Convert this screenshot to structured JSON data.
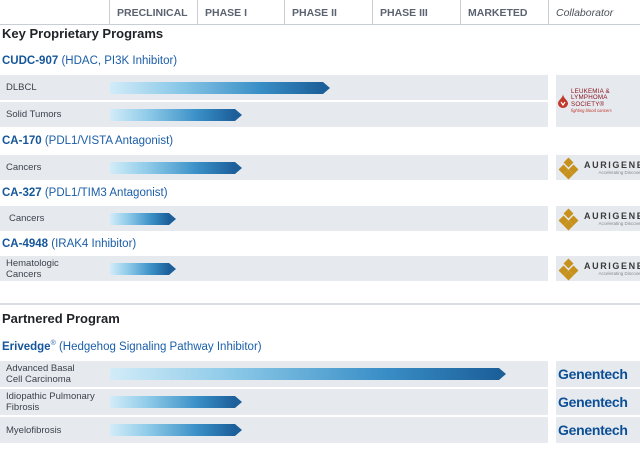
{
  "chart_data": {
    "type": "pipeline",
    "phases": [
      "PRECLINICAL",
      "PHASE I",
      "PHASE II",
      "PHASE III",
      "MARKETED"
    ],
    "collaborator_header": "Collaborator",
    "sections": [
      {
        "title": "Key Proprietary Programs",
        "programs": [
          {
            "code": "CUDC-907",
            "desc": "(HDAC, PI3K Inhibitor)",
            "sup": "",
            "rows": [
              {
                "label": [
                  "DLBCL"
                ],
                "progress": 2.5
              },
              {
                "label": [
                  "Solid Tumors"
                ],
                "progress": 1.5
              }
            ],
            "collaborator": {
              "kind": "lls",
              "name_lines": [
                "LEUKEMIA &",
                "LYMPHOMA SOCIETY"
              ],
              "trademark": "®",
              "tagline": "fighting blood cancers"
            }
          },
          {
            "code": "CA-170",
            "desc": "(PDL1/VISTA Antagonist)",
            "sup": "",
            "rows": [
              {
                "label": [
                  "Cancers"
                ],
                "progress": 1.5
              }
            ],
            "collaborator": {
              "kind": "aurigene",
              "name": "AURIGENE",
              "tagline": "Accelerating Discovery"
            }
          },
          {
            "code": "CA-327",
            "desc": "(PDL1/TIM3 Antagonist)",
            "sup": "",
            "rows": [
              {
                "label": [
                  "Cancers"
                ],
                "progress": 0.75
              }
            ],
            "collaborator": {
              "kind": "aurigene",
              "name": "AURIGENE",
              "tagline": "Accelerating Discovery"
            }
          },
          {
            "code": "CA-4948",
            "desc": "(IRAK4 Inhibitor)",
            "sup": "",
            "rows": [
              {
                "label": [
                  "Hematologic",
                  "Cancers"
                ],
                "progress": 0.75
              }
            ],
            "collaborator": {
              "kind": "aurigene",
              "name": "AURIGENE",
              "tagline": "Accelerating Discovery"
            }
          }
        ]
      },
      {
        "title": "Partnered Program",
        "programs": [
          {
            "code": "Erivedge",
            "sup": "®",
            "desc": "(Hedgehog Signaling Pathway Inhibitor)",
            "rows": [
              {
                "label": [
                  "Advanced Basal",
                  "Cell Carcinoma"
                ],
                "progress": 4.5,
                "collaborator": {
                  "kind": "genentech",
                  "name": "Genentech"
                }
              },
              {
                "label": [
                  "Idiopathic Pulmonary",
                  "Fibrosis"
                ],
                "progress": 1.5,
                "collaborator": {
                  "kind": "genentech",
                  "name": "Genentech"
                }
              },
              {
                "label": [
                  "Myelofibrosis"
                ],
                "progress": 1.5,
                "collaborator": {
                  "kind": "genentech",
                  "name": "Genentech"
                }
              }
            ]
          }
        ]
      }
    ]
  }
}
